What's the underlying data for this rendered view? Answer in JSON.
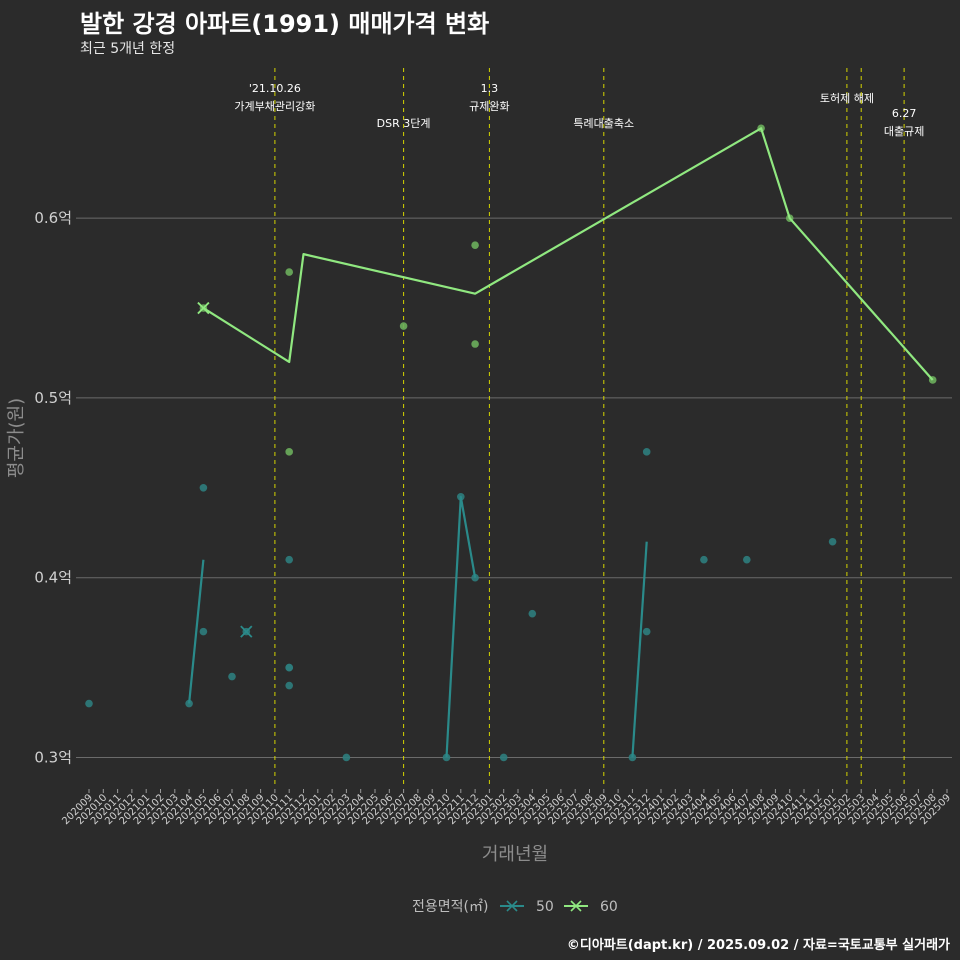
{
  "header": {
    "title": "발한 강경 아파트(1991) 매매가격 변화",
    "subtitle": "최근 5개년 한정"
  },
  "footer": {
    "caption": "©디아파트(dapt.kr) / 2025.09.02 / 자료=국토교통부 실거래가"
  },
  "colors": {
    "background": "#2b2b2b",
    "grid": "#6b6b6b",
    "event_line": "#d4d400",
    "series_50": "#2a8a8a",
    "series_60": "#90e880",
    "point_50": "#2e7d7d",
    "point_60": "#6bae5c"
  },
  "chart_data": {
    "type": "line",
    "title": "발한 강경 아파트(1991) 매매가격 변화",
    "xlabel": "거래년월",
    "ylabel": "평균가(원)",
    "ylim": [
      0.283,
      0.688
    ],
    "yticks": [
      {
        "value": 0.3,
        "label": "0.3억"
      },
      {
        "value": 0.4,
        "label": "0.4억"
      },
      {
        "value": 0.5,
        "label": "0.5억"
      },
      {
        "value": 0.6,
        "label": "0.6억"
      }
    ],
    "categories": [
      "202009",
      "202010",
      "202011",
      "202012",
      "202101",
      "202102",
      "202103",
      "202104",
      "202105",
      "202106",
      "202107",
      "202108",
      "202109",
      "202110",
      "202111",
      "202112",
      "202201",
      "202202",
      "202203",
      "202204",
      "202205",
      "202206",
      "202207",
      "202208",
      "202209",
      "202210",
      "202211",
      "202212",
      "202301",
      "202302",
      "202303",
      "202304",
      "202305",
      "202306",
      "202307",
      "202308",
      "202309",
      "202310",
      "202311",
      "202312",
      "202401",
      "202402",
      "202403",
      "202404",
      "202405",
      "202406",
      "202407",
      "202408",
      "202409",
      "202410",
      "202411",
      "202412",
      "202501",
      "202502",
      "202503",
      "202504",
      "202505",
      "202506",
      "202507",
      "202508",
      "202509"
    ],
    "legend": {
      "title": "전용면적(㎡)",
      "entries": [
        "50",
        "60"
      ]
    },
    "events": [
      {
        "x": 13,
        "lines": [
          "'21.10.26",
          "가계부채관리강화"
        ]
      },
      {
        "x": 22,
        "lines": [
          "DSR 3단계"
        ]
      },
      {
        "x": 28,
        "lines": [
          "1.3",
          "규제완화"
        ]
      },
      {
        "x": 36,
        "lines": [
          "특례대출축소"
        ]
      },
      {
        "x": 53,
        "lines": [
          "토허제 해제"
        ]
      },
      {
        "x": 54,
        "lines": [
          ""
        ]
      },
      {
        "x": 57,
        "lines": [
          "6.27",
          "대출규제"
        ]
      }
    ],
    "series": [
      {
        "name": "50",
        "segments": [
          [
            [
              7,
              0.33
            ],
            [
              8,
              0.41
            ]
          ],
          [
            [
              25,
              0.3
            ],
            [
              26,
              0.445
            ],
            [
              27,
              0.4
            ]
          ],
          [
            [
              38,
              0.3
            ],
            [
              39,
              0.42
            ]
          ]
        ],
        "crosses": [
          [
            11,
            0.37
          ]
        ],
        "points": [
          [
            0,
            0.33
          ],
          [
            7,
            0.33
          ],
          [
            8,
            0.45
          ],
          [
            8,
            0.37
          ],
          [
            10,
            0.345
          ],
          [
            11,
            0.37
          ],
          [
            14,
            0.41
          ],
          [
            14,
            0.35
          ],
          [
            14,
            0.35
          ],
          [
            14,
            0.34
          ],
          [
            18,
            0.3
          ],
          [
            25,
            0.3
          ],
          [
            26,
            0.445
          ],
          [
            27,
            0.4
          ],
          [
            29,
            0.3
          ],
          [
            31,
            0.38
          ],
          [
            38,
            0.3
          ],
          [
            39,
            0.47
          ],
          [
            39,
            0.37
          ],
          [
            43,
            0.41
          ],
          [
            46,
            0.41
          ],
          [
            52,
            0.42
          ]
        ]
      },
      {
        "name": "60",
        "segments": [
          [
            [
              8,
              0.55
            ],
            [
              14,
              0.52
            ],
            [
              15,
              0.58
            ],
            [
              27,
              0.558
            ],
            [
              47,
              0.65
            ],
            [
              49,
              0.6
            ],
            [
              59,
              0.51
            ]
          ]
        ],
        "crosses": [
          [
            8,
            0.55
          ]
        ],
        "points": [
          [
            8,
            0.55
          ],
          [
            14,
            0.57
          ],
          [
            14,
            0.47
          ],
          [
            22,
            0.54
          ],
          [
            27,
            0.585
          ],
          [
            27,
            0.53
          ],
          [
            47,
            0.65
          ],
          [
            49,
            0.6
          ],
          [
            59,
            0.51
          ]
        ]
      }
    ]
  }
}
